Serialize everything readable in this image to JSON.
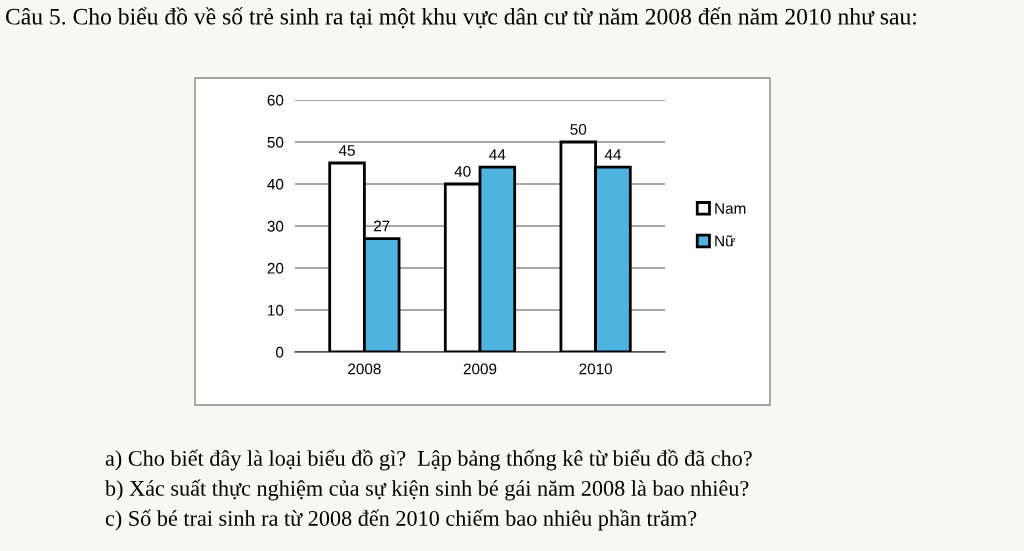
{
  "chart_data": {
    "type": "bar",
    "title": "Câu 5. Cho biểu đồ về số trẻ sinh ra tại một khu vực dân cư từ năm 2008 đến năm 2010 như sau:",
    "categories": [
      "2008",
      "2009",
      "2010"
    ],
    "series": [
      {
        "name": "Nam",
        "color": "#ffffff",
        "values": [
          45,
          40,
          50
        ]
      },
      {
        "name": "Nữ",
        "color": "#4fb3e0",
        "values": [
          27,
          44,
          44
        ]
      }
    ],
    "ylim": [
      0,
      60
    ],
    "yticks": [
      0,
      10,
      20,
      30,
      40,
      50,
      60
    ],
    "grid": "y",
    "legend": "right",
    "data_labels": true,
    "annotations": [
      "a) Cho biết đây là loại biểu đồ gì?  Lập bảng thống kê từ biểu đồ đã cho?",
      "b) Xác suất thực nghiệm của sự kiện sinh bé gái năm 2008 là bao nhiêu?",
      "c) Số bé trai sinh ra từ 2008 đến 2010 chiếm bao nhiêu phần trăm?"
    ]
  }
}
